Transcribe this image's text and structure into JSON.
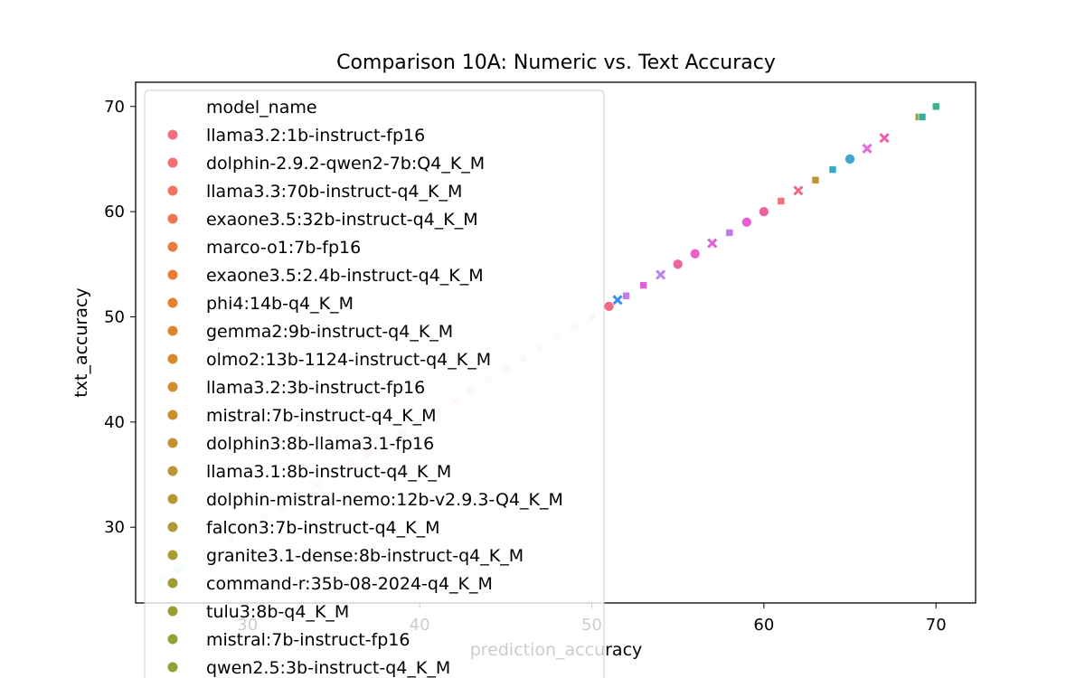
{
  "chart_data": {
    "type": "scatter",
    "title": "Comparison 10A: Numeric vs. Text Accuracy",
    "xlabel": "prediction_accuracy",
    "ylabel": "txt_accuracy",
    "xlim": [
      23.5,
      72.3
    ],
    "ylim": [
      22.8,
      72.3
    ],
    "x_ticks": [
      30,
      40,
      50,
      60,
      70
    ],
    "y_ticks": [
      30,
      40,
      50,
      60,
      70
    ],
    "grid": false,
    "legend": {
      "title": "model_name",
      "placement": "top-left",
      "entries": [
        {
          "name": "llama3.2:1b-instruct-fp16",
          "color": "#f07080"
        },
        {
          "name": "dolphin-2.9.2-qwen2-7b:Q4_K_M",
          "color": "#f0716e"
        },
        {
          "name": "llama3.3:70b-instruct-q4_K_M",
          "color": "#f17360"
        },
        {
          "name": "exaone3.5:32b-instruct-q4_K_M",
          "color": "#f07552"
        },
        {
          "name": "marco-o1:7b-fp16",
          "color": "#ec7a3c"
        },
        {
          "name": "exaone3.5:2.4b-instruct-q4_K_M",
          "color": "#e97e32"
        },
        {
          "name": "phi4:14b-q4_K_M",
          "color": "#e5802d"
        },
        {
          "name": "gemma2:9b-instruct-q4_K_M",
          "color": "#e0852c"
        },
        {
          "name": "olmo2:13b-1124-instruct-q4_K_M",
          "color": "#d9882c"
        },
        {
          "name": "llama3.2:3b-instruct-fp16",
          "color": "#d18d2e"
        },
        {
          "name": "mistral:7b-instruct-q4_K_M",
          "color": "#c99030"
        },
        {
          "name": "dolphin3:8b-llama3.1-fp16",
          "color": "#c39232"
        },
        {
          "name": "llama3.1:8b-instruct-q4_K_M",
          "color": "#bc9532"
        },
        {
          "name": "dolphin-mistral-nemo:12b-v2.9.3-Q4_K_M",
          "color": "#b49832"
        },
        {
          "name": "falcon3:7b-instruct-q4_K_M",
          "color": "#ad9a32"
        },
        {
          "name": "granite3.1-dense:8b-instruct-q4_K_M",
          "color": "#a69c32"
        },
        {
          "name": "command-r:35b-08-2024-q4_K_M",
          "color": "#a09e33"
        },
        {
          "name": "tulu3:8b-q4_K_M",
          "color": "#99a033"
        },
        {
          "name": "mistral:7b-instruct-fp16",
          "color": "#91a234"
        },
        {
          "name": "qwen2.5:3b-instruct-q4_K_M",
          "color": "#8aa435"
        }
      ]
    },
    "points": [
      {
        "x": 70,
        "y": 70,
        "marker": "square",
        "color": "#3bb08f"
      },
      {
        "x": 69,
        "y": 69,
        "marker": "square",
        "color": "#9aa033"
      },
      {
        "x": 69.2,
        "y": 69,
        "marker": "square",
        "color": "#35ad9c"
      },
      {
        "x": 67,
        "y": 67,
        "marker": "x",
        "color": "#ef5fa9"
      },
      {
        "x": 66,
        "y": 66,
        "marker": "x",
        "color": "#e665dd"
      },
      {
        "x": 65,
        "y": 65,
        "marker": "circle",
        "color": "#3aa7d0"
      },
      {
        "x": 64,
        "y": 64,
        "marker": "square",
        "color": "#38a9c5"
      },
      {
        "x": 63,
        "y": 63,
        "marker": "square",
        "color": "#b99534"
      },
      {
        "x": 62,
        "y": 62,
        "marker": "x",
        "color": "#f06a88"
      },
      {
        "x": 61,
        "y": 61,
        "marker": "square",
        "color": "#f0717a"
      },
      {
        "x": 60,
        "y": 60,
        "marker": "circle",
        "color": "#f05fa0"
      },
      {
        "x": 59,
        "y": 59,
        "marker": "circle",
        "color": "#ea5fd0"
      },
      {
        "x": 58,
        "y": 58,
        "marker": "square",
        "color": "#c479ef"
      },
      {
        "x": 57,
        "y": 57,
        "marker": "x",
        "color": "#e062d8"
      },
      {
        "x": 56,
        "y": 56,
        "marker": "circle",
        "color": "#ec60cc"
      },
      {
        "x": 55,
        "y": 55,
        "marker": "circle",
        "color": "#ef649a"
      },
      {
        "x": 54,
        "y": 54,
        "marker": "x",
        "color": "#b884f0"
      },
      {
        "x": 53,
        "y": 53,
        "marker": "square",
        "color": "#e062d8"
      },
      {
        "x": 52,
        "y": 52,
        "marker": "square",
        "color": "#c47bef"
      },
      {
        "x": 51.5,
        "y": 51.6,
        "marker": "x",
        "color": "#3a8fe0"
      },
      {
        "x": 51,
        "y": 51,
        "marker": "circle",
        "color": "#f06a88"
      },
      {
        "x": 50,
        "y": 50,
        "marker": "square",
        "color": "#f8cde3"
      },
      {
        "x": 49,
        "y": 49,
        "marker": "circle",
        "color": "#dcdcfa"
      },
      {
        "x": 48,
        "y": 48,
        "marker": "square",
        "color": "#fad6ec"
      },
      {
        "x": 47,
        "y": 47,
        "marker": "square",
        "color": "#e0ddfa"
      },
      {
        "x": 46,
        "y": 46,
        "marker": "square",
        "color": "#f6d6e6"
      },
      {
        "x": 45,
        "y": 45,
        "marker": "circle",
        "color": "#d0eee2"
      },
      {
        "x": 44,
        "y": 44,
        "marker": "square",
        "color": "#fad4ec"
      },
      {
        "x": 43,
        "y": 43,
        "marker": "circle",
        "color": "#d0ecdc"
      },
      {
        "x": 42,
        "y": 42,
        "marker": "x",
        "color": "#fad4ec"
      },
      {
        "x": 41,
        "y": 41,
        "marker": "circle",
        "color": "#dde0fa"
      },
      {
        "x": 40,
        "y": 40,
        "marker": "circle",
        "color": "#cdeed8"
      },
      {
        "x": 39,
        "y": 39,
        "marker": "circle",
        "color": "#d6e2fa"
      },
      {
        "x": 38,
        "y": 38,
        "marker": "square",
        "color": "#fad4e0"
      },
      {
        "x": 37,
        "y": 37,
        "marker": "circle",
        "color": "#fad4e4"
      },
      {
        "x": 36,
        "y": 36,
        "marker": "circle",
        "color": "#fad0dc"
      },
      {
        "x": 35,
        "y": 35,
        "marker": "square",
        "color": "#fad6ee"
      },
      {
        "x": 34,
        "y": 34,
        "marker": "x",
        "color": "#fad0e0"
      },
      {
        "x": 33,
        "y": 33,
        "marker": "circle",
        "color": "#fad6dc"
      },
      {
        "x": 32,
        "y": 32,
        "marker": "circle",
        "color": "#fad8ea"
      },
      {
        "x": 31,
        "y": 31,
        "marker": "x",
        "color": "#d6e6fa"
      },
      {
        "x": 30,
        "y": 30,
        "marker": "circle",
        "color": "#d8f0e0"
      },
      {
        "x": 29,
        "y": 29,
        "marker": "square",
        "color": "#fad4e0"
      },
      {
        "x": 26,
        "y": 26,
        "marker": "circle",
        "color": "#d0eed6"
      },
      {
        "x": 25,
        "y": 25,
        "marker": "square",
        "color": "#dcf0d8"
      }
    ]
  }
}
